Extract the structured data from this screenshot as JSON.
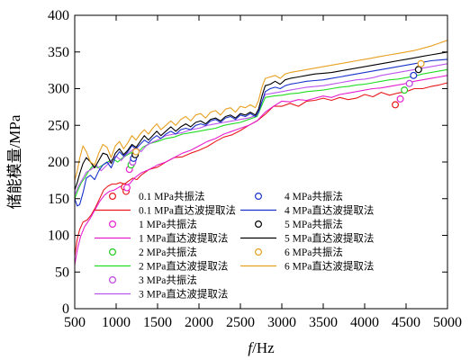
{
  "chart_data": {
    "type": "line",
    "xlabel_italic": "f",
    "xlabel_rest": "/Hz",
    "ylabel": "储能模量/MPa",
    "xlim": [
      500,
      5000
    ],
    "ylim": [
      0,
      400
    ],
    "xticks": [
      500,
      1000,
      1500,
      2000,
      2500,
      3000,
      3500,
      4000,
      4500,
      5000
    ],
    "yticks": [
      0,
      50,
      100,
      150,
      200,
      250,
      300,
      350,
      400
    ],
    "grid": false,
    "legend_position": "bottom-right",
    "series": [
      {
        "kind": "markers",
        "name": "0.1 MPa共振法",
        "color": "#e8191c",
        "x": [
          1100,
          1120,
          4370
        ],
        "y": [
          166,
          160,
          278
        ]
      },
      {
        "kind": "line",
        "name": "0.1 MPa直达波提取法",
        "color": "#e8191c",
        "x": [
          500,
          530,
          560,
          600,
          650,
          700,
          750,
          800,
          850,
          900,
          950,
          1000,
          1050,
          1100,
          1150,
          1200,
          1250,
          1300,
          1400,
          1500,
          1600,
          1700,
          1800,
          1900,
          2000,
          2100,
          2200,
          2300,
          2400,
          2500,
          2600,
          2700,
          2800,
          2900,
          3000,
          3100,
          3200,
          3300,
          3400,
          3500,
          3600,
          3700,
          3800,
          3900,
          4000,
          4100,
          4200,
          4300,
          4400,
          4500,
          4600,
          4700,
          4800,
          4900,
          5000
        ],
        "y": [
          72,
          95,
          108,
          118,
          121,
          128,
          138,
          150,
          162,
          167,
          170,
          170,
          172,
          170,
          174,
          178,
          176,
          182,
          190,
          193,
          200,
          206,
          207,
          212,
          216,
          221,
          228,
          234,
          237,
          243,
          250,
          256,
          265,
          276,
          276,
          280,
          276,
          283,
          284,
          287,
          284,
          288,
          285,
          287,
          292,
          289,
          295,
          291,
          294,
          296,
          300,
          300,
          303,
          305,
          308
        ]
      },
      {
        "kind": "markers",
        "name": "1 MPa共振法",
        "color": "#e61fcf",
        "x": [
          1130,
          1160,
          4430
        ],
        "y": [
          165,
          190,
          286
        ]
      },
      {
        "kind": "line",
        "name": "1 MPa直达波提取法",
        "color": "#e61fcf",
        "x": [
          500,
          530,
          570,
          620,
          680,
          740,
          800,
          860,
          920,
          980,
          1040,
          1100,
          1160,
          1220,
          1300,
          1400,
          1500,
          1600,
          1700,
          1800,
          1900,
          2000,
          2100,
          2200,
          2300,
          2400,
          2500,
          2600,
          2700,
          2800,
          2900,
          3000,
          3100,
          3200,
          3300,
          3400,
          3500,
          3600,
          3700,
          3800,
          3900,
          4000,
          4100,
          4200,
          4300,
          4400,
          4500,
          4600,
          4700,
          4800,
          4900,
          5000
        ],
        "y": [
          60,
          80,
          98,
          112,
          122,
          134,
          146,
          155,
          160,
          162,
          166,
          168,
          170,
          178,
          185,
          190,
          196,
          200,
          206,
          212,
          216,
          222,
          228,
          232,
          238,
          242,
          246,
          250,
          256,
          268,
          276,
          283,
          282,
          285,
          284,
          287,
          290,
          288,
          292,
          294,
          296,
          298,
          300,
          301,
          303,
          305,
          307,
          310,
          312,
          314,
          316,
          318
        ]
      },
      {
        "kind": "markers",
        "name": "2 MPa共振法",
        "color": "#22cc22",
        "x": [
          1180,
          4480
        ],
        "y": [
          196,
          298
        ]
      },
      {
        "kind": "line",
        "name": "2 MPa直达波提取法",
        "color": "#22dd22",
        "x": [
          500,
          540,
          580,
          620,
          670,
          720,
          780,
          840,
          900,
          960,
          1020,
          1080,
          1140,
          1200,
          1260,
          1320,
          1400,
          1500,
          1600,
          1700,
          1800,
          1900,
          2000,
          2100,
          2200,
          2300,
          2400,
          2500,
          2600,
          2700,
          2750,
          2800,
          2900,
          3000,
          3100,
          3200,
          3300,
          3400,
          3500,
          3600,
          3700,
          3800,
          3900,
          4000,
          4100,
          4200,
          4300,
          4400,
          4500,
          4600,
          4700,
          4800,
          4900,
          5000
        ],
        "y": [
          150,
          162,
          172,
          178,
          188,
          195,
          192,
          196,
          200,
          204,
          200,
          206,
          210,
          214,
          212,
          220,
          225,
          228,
          232,
          234,
          238,
          240,
          242,
          244,
          246,
          250,
          252,
          254,
          258,
          262,
          275,
          288,
          290,
          291,
          293,
          294,
          296,
          297,
          298,
          300,
          302,
          303,
          305,
          306,
          308,
          310,
          312,
          313,
          315,
          317,
          320,
          322,
          324,
          326
        ]
      },
      {
        "kind": "markers",
        "name": "3 MPa共振法",
        "color": "#bb44dd",
        "x": [
          1200,
          4540
        ],
        "y": [
          200,
          307
        ]
      },
      {
        "kind": "line",
        "name": "3 MPa直达波提取法",
        "color": "#bb55ee",
        "x": [
          500,
          540,
          590,
          640,
          700,
          760,
          820,
          880,
          940,
          1000,
          1060,
          1120,
          1180,
          1240,
          1300,
          1360,
          1420,
          1500,
          1600,
          1700,
          1800,
          1900,
          2000,
          2100,
          2200,
          2300,
          2400,
          2500,
          2600,
          2700,
          2750,
          2800,
          2900,
          3000,
          3100,
          3200,
          3300,
          3400,
          3500,
          3600,
          3700,
          3800,
          3900,
          4000,
          4100,
          4200,
          4300,
          4400,
          4500,
          4600,
          4700,
          4800,
          4900,
          5000
        ],
        "y": [
          155,
          166,
          176,
          186,
          190,
          196,
          188,
          195,
          202,
          208,
          202,
          210,
          215,
          220,
          214,
          222,
          226,
          230,
          236,
          238,
          240,
          244,
          246,
          250,
          252,
          254,
          256,
          258,
          260,
          264,
          280,
          292,
          294,
          296,
          298,
          300,
          302,
          303,
          304,
          306,
          308,
          310,
          312,
          313,
          315,
          318,
          320,
          322,
          324,
          326,
          328,
          330,
          332,
          334
        ]
      },
      {
        "kind": "markers",
        "name": "4 MPa共振法",
        "color": "#1a33cc",
        "x": [
          1210,
          4590
        ],
        "y": [
          205,
          318
        ]
      },
      {
        "kind": "line",
        "name": "4 MPa直达波提取法",
        "color": "#1a33cc",
        "x": [
          500,
          530,
          560,
          600,
          640,
          690,
          740,
          790,
          840,
          890,
          940,
          990,
          1040,
          1090,
          1140,
          1190,
          1240,
          1290,
          1340,
          1390,
          1440,
          1490,
          1540,
          1600,
          1660,
          1720,
          1780,
          1840,
          1900,
          1960,
          2020,
          2080,
          2140,
          2200,
          2260,
          2320,
          2380,
          2440,
          2500,
          2560,
          2620,
          2680,
          2720,
          2760,
          2800,
          2860,
          2920,
          2980,
          3040,
          3100,
          3200,
          3300,
          3400,
          3500,
          3600,
          3700,
          3800,
          3900,
          4000,
          4100,
          4200,
          4300,
          4400,
          4500,
          4600,
          4700,
          4800,
          4900,
          5000
        ],
        "y": [
          150,
          140,
          142,
          158,
          178,
          182,
          176,
          188,
          196,
          200,
          192,
          206,
          214,
          208,
          214,
          222,
          218,
          224,
          230,
          226,
          232,
          236,
          232,
          238,
          242,
          238,
          244,
          246,
          244,
          250,
          252,
          250,
          256,
          258,
          254,
          260,
          262,
          258,
          264,
          262,
          266,
          262,
          268,
          282,
          296,
          300,
          302,
          300,
          304,
          306,
          308,
          310,
          311,
          312,
          314,
          316,
          318,
          320,
          322,
          324,
          326,
          328,
          330,
          332,
          334,
          336,
          338,
          339,
          340
        ]
      },
      {
        "kind": "markers",
        "name": "5 MPa共振法",
        "color": "#000000",
        "x": [
          1230,
          4650
        ],
        "y": [
          210,
          326
        ]
      },
      {
        "kind": "line",
        "name": "5 MPa直达波提取法",
        "color": "#000000",
        "x": [
          500,
          530,
          560,
          600,
          640,
          690,
          740,
          790,
          840,
          890,
          940,
          990,
          1040,
          1090,
          1140,
          1190,
          1240,
          1290,
          1340,
          1390,
          1440,
          1490,
          1540,
          1600,
          1660,
          1720,
          1780,
          1840,
          1900,
          1960,
          2020,
          2080,
          2140,
          2200,
          2260,
          2320,
          2380,
          2440,
          2500,
          2560,
          2620,
          2680,
          2720,
          2760,
          2800,
          2860,
          2920,
          2980,
          3040,
          3100,
          3200,
          3300,
          3400,
          3500,
          3600,
          3700,
          3800,
          3900,
          4000,
          4100,
          4200,
          4300,
          4400,
          4500,
          4600,
          4700,
          4800,
          4900,
          5000
        ],
        "y": [
          162,
          172,
          184,
          198,
          206,
          200,
          192,
          202,
          212,
          210,
          198,
          212,
          218,
          210,
          216,
          224,
          220,
          228,
          236,
          230,
          236,
          242,
          236,
          242,
          248,
          242,
          248,
          252,
          248,
          254,
          256,
          252,
          258,
          260,
          256,
          262,
          264,
          260,
          266,
          264,
          268,
          264,
          272,
          290,
          304,
          306,
          310,
          306,
          312,
          314,
          316,
          318,
          320,
          321,
          322,
          324,
          326,
          328,
          330,
          332,
          334,
          336,
          338,
          340,
          342,
          344,
          346,
          348,
          350
        ]
      },
      {
        "kind": "markers",
        "name": "6 MPa共振法",
        "color": "#e8a020",
        "x": [
          1240,
          4680
        ],
        "y": [
          214,
          334
        ]
      },
      {
        "kind": "line",
        "name": "6 MPa直达波提取法",
        "color": "#e8a020",
        "x": [
          500,
          530,
          560,
          600,
          640,
          690,
          740,
          790,
          840,
          890,
          940,
          990,
          1040,
          1090,
          1140,
          1190,
          1240,
          1290,
          1340,
          1390,
          1440,
          1490,
          1540,
          1600,
          1660,
          1720,
          1780,
          1840,
          1900,
          1960,
          2020,
          2080,
          2140,
          2200,
          2260,
          2320,
          2380,
          2440,
          2500,
          2560,
          2620,
          2680,
          2720,
          2760,
          2800,
          2860,
          2920,
          2980,
          3040,
          3100,
          3200,
          3300,
          3400,
          3500,
          3600,
          3700,
          3800,
          3900,
          4000,
          4100,
          4200,
          4300,
          4400,
          4500,
          4600,
          4700,
          4800,
          4900,
          5000
        ],
        "y": [
          175,
          188,
          205,
          222,
          214,
          200,
          196,
          212,
          224,
          220,
          206,
          222,
          228,
          218,
          226,
          236,
          230,
          238,
          244,
          238,
          246,
          252,
          244,
          250,
          256,
          250,
          258,
          262,
          256,
          264,
          266,
          260,
          268,
          270,
          264,
          272,
          274,
          268,
          276,
          274,
          278,
          274,
          284,
          302,
          314,
          316,
          318,
          314,
          320,
          322,
          324,
          326,
          328,
          330,
          332,
          334,
          336,
          338,
          340,
          342,
          344,
          346,
          348,
          350,
          352,
          355,
          358,
          362,
          366
        ]
      }
    ]
  }
}
